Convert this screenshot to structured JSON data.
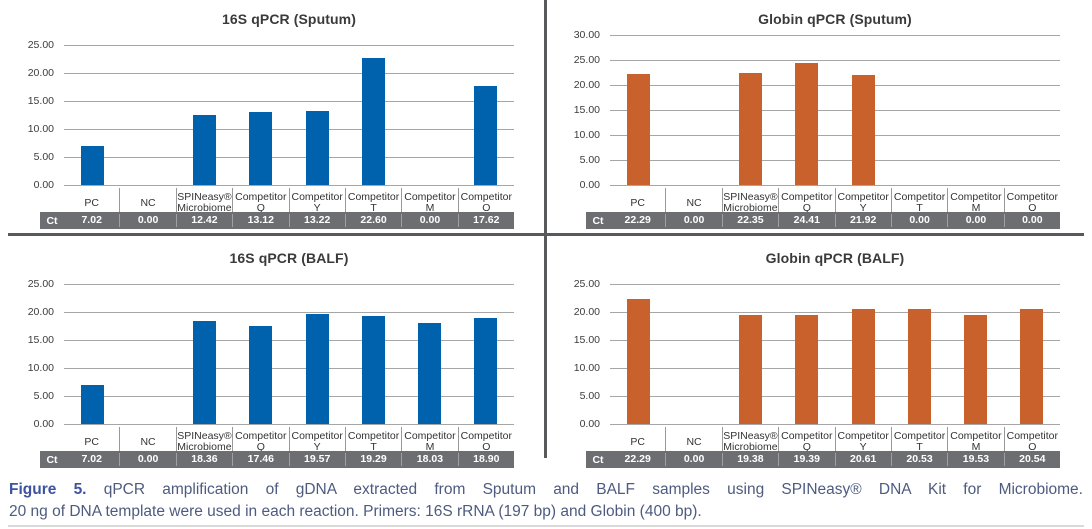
{
  "colors": {
    "blue_bar": "#0061AC",
    "orange_bar": "#C8612C",
    "ct_band": "#6D6E71",
    "divider": "#58595B",
    "gridline": "#A6A6A6",
    "caption_text": "#4E5B80",
    "caption_label": "#3D53A0"
  },
  "chart_data": [
    {
      "type": "bar",
      "title": "16S qPCR (Sputum)",
      "bar_color": "#0061AC",
      "ylim": [
        0,
        25
      ],
      "yticks": [
        25,
        20,
        15,
        10,
        5,
        0
      ],
      "ytick_labels": [
        "25.00",
        "20.00",
        "15.00",
        "10.00",
        "5.00",
        "0.00"
      ],
      "categories": [
        "PC",
        "NC",
        "SPINeasy® Microbiome",
        "Competitor Q",
        "Competitor Y",
        "Competitor T",
        "Competitor M",
        "Competitor O"
      ],
      "category_lines": [
        [
          "PC"
        ],
        [
          "NC"
        ],
        [
          "SPINeasy®",
          "Microbiome"
        ],
        [
          "Competitor",
          "Q"
        ],
        [
          "Competitor",
          "Y"
        ],
        [
          "Competitor",
          "T"
        ],
        [
          "Competitor",
          "M"
        ],
        [
          "Competitor",
          "O"
        ]
      ],
      "values": [
        7.02,
        0.0,
        12.42,
        13.12,
        13.22,
        22.6,
        0.0,
        17.62
      ],
      "ct_label": "Ct",
      "ct_values": [
        "7.02",
        "0.00",
        "12.42",
        "13.12",
        "13.22",
        "22.60",
        "0.00",
        "17.62"
      ],
      "grid": true,
      "legend": false
    },
    {
      "type": "bar",
      "title": "Globin qPCR (Sputum)",
      "bar_color": "#C8612C",
      "ylim": [
        0,
        30
      ],
      "yticks": [
        30,
        25,
        20,
        15,
        10,
        5,
        0
      ],
      "ytick_labels": [
        "30.00",
        "25.00",
        "20.00",
        "15.00",
        "10.00",
        "5.00",
        "0.00"
      ],
      "categories": [
        "PC",
        "NC",
        "SPINeasy® Microbiome",
        "Competitor Q",
        "Competitor Y",
        "Competitor T",
        "Competitor M",
        "Competitor O"
      ],
      "category_lines": [
        [
          "PC"
        ],
        [
          "NC"
        ],
        [
          "SPINeasy®",
          "Microbiome"
        ],
        [
          "Competitor",
          "Q"
        ],
        [
          "Competitor",
          "Y"
        ],
        [
          "Competitor",
          "T"
        ],
        [
          "Competitor",
          "M"
        ],
        [
          "Competitor",
          "O"
        ]
      ],
      "values": [
        22.29,
        0.0,
        22.35,
        24.41,
        21.92,
        0.0,
        0.0,
        0.0
      ],
      "ct_label": "Ct",
      "ct_values": [
        "22.29",
        "0.00",
        "22.35",
        "24.41",
        "21.92",
        "0.00",
        "0.00",
        "0.00"
      ],
      "grid": true,
      "legend": false
    },
    {
      "type": "bar",
      "title": "16S qPCR (BALF)",
      "bar_color": "#0061AC",
      "ylim": [
        0,
        25
      ],
      "yticks": [
        25,
        20,
        15,
        10,
        5,
        0
      ],
      "ytick_labels": [
        "25.00",
        "20.00",
        "15.00",
        "10.00",
        "5.00",
        "0.00"
      ],
      "categories": [
        "PC",
        "NC",
        "SPINeasy® Microbiome",
        "Competitor Q",
        "Competitor Y",
        "Competitor T",
        "Competitor M",
        "Competitor O"
      ],
      "category_lines": [
        [
          "PC"
        ],
        [
          "NC"
        ],
        [
          "SPINeasy®",
          "Microbiome"
        ],
        [
          "Competitor",
          "Q"
        ],
        [
          "Competitor",
          "Y"
        ],
        [
          "Competitor",
          "T"
        ],
        [
          "Competitor",
          "M"
        ],
        [
          "Competitor",
          "O"
        ]
      ],
      "values": [
        7.02,
        0.0,
        18.36,
        17.46,
        19.57,
        19.29,
        18.03,
        18.9
      ],
      "ct_label": "Ct",
      "ct_values": [
        "7.02",
        "0.00",
        "18.36",
        "17.46",
        "19.57",
        "19.29",
        "18.03",
        "18.90"
      ],
      "grid": true,
      "legend": false
    },
    {
      "type": "bar",
      "title": "Globin qPCR (BALF)",
      "bar_color": "#C8612C",
      "ylim": [
        0,
        25
      ],
      "yticks": [
        25,
        20,
        15,
        10,
        5,
        0
      ],
      "ytick_labels": [
        "25.00",
        "20.00",
        "15.00",
        "10.00",
        "5.00",
        "0.00"
      ],
      "categories": [
        "PC",
        "NC",
        "SPINeasy® Microbiome",
        "Competitor Q",
        "Competitor Y",
        "Competitor T",
        "Competitor M",
        "Competitor O"
      ],
      "category_lines": [
        [
          "PC"
        ],
        [
          "NC"
        ],
        [
          "SPINeasy®",
          "Microbiome"
        ],
        [
          "Competitor",
          "Q"
        ],
        [
          "Competitor",
          "Y"
        ],
        [
          "Competitor",
          "T"
        ],
        [
          "Competitor",
          "M"
        ],
        [
          "Competitor",
          "O"
        ]
      ],
      "values": [
        22.29,
        0.0,
        19.38,
        19.39,
        20.61,
        20.53,
        19.53,
        20.54
      ],
      "ct_label": "Ct",
      "ct_values": [
        "22.29",
        "0.00",
        "19.38",
        "19.39",
        "20.61",
        "20.53",
        "19.53",
        "20.54"
      ],
      "grid": true,
      "legend": false
    }
  ],
  "caption": {
    "label": "Figure 5.",
    "line1_rest": "qPCR amplification of gDNA extracted from Sputum and BALF samples using SPINeasy® DNA Kit for Microbiome.",
    "line2": "20 ng of DNA template were used in each reaction. Primers: 16S rRNA (197 bp) and Globin (400 bp)."
  }
}
